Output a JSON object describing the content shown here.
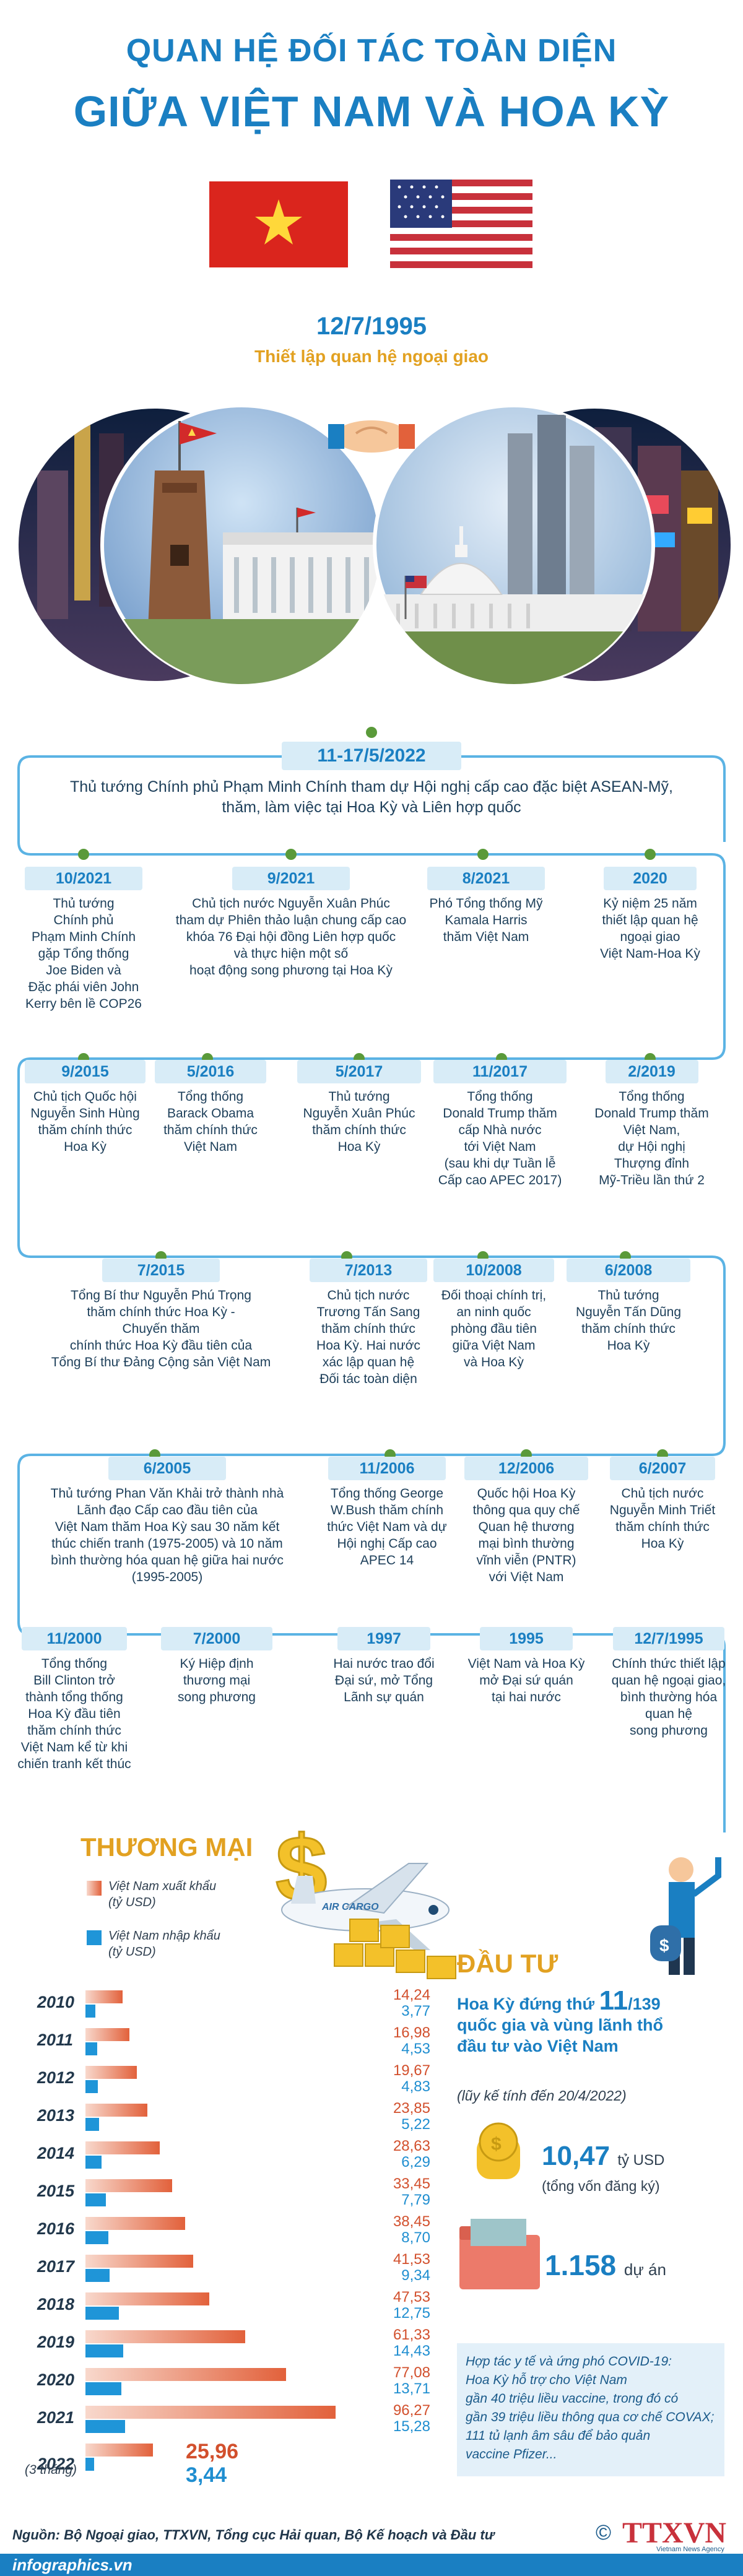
{
  "title": {
    "line1": "QUAN HỆ ĐỐI TÁC TOÀN DIỆN",
    "line2": "GIỮA VIỆT NAM VÀ HOA KỲ"
  },
  "establish": {
    "date": "12/7/1995",
    "label": "Thiết lập quan hệ ngoại giao"
  },
  "colors": {
    "accent": "#1a7fc2",
    "band": "#d8ecf7",
    "export": "#e2613b",
    "import": "#1f95d8",
    "line": "#5bb3e4"
  },
  "top_event": {
    "date": "11-17/5/2022",
    "text": "Thủ tướng Chính phủ Phạm Minh Chính tham dự Hội nghị cấp cao đặc biệt ASEAN-Mỹ,\nthăm, làm việc tại Hoa Kỳ và Liên hợp quốc"
  },
  "rows": [
    [
      {
        "date": "10/2021",
        "text": "Thủ tướng\nChính phủ\nPhạm Minh Chính\ngặp Tổng thống\nJoe Biden và\nĐặc phái viên John\nKerry bên lề COP26"
      },
      {
        "date": "9/2021",
        "text": "Chủ tịch nước Nguyễn Xuân Phúc\ntham dự Phiên thảo luận chung cấp cao\nkhóa 76 Đại hội đồng Liên hợp quốc\nvà thực hiện một số\nhoạt động song phương tại Hoa Kỳ"
      },
      {
        "date": "8/2021",
        "text": "Phó Tổng thống Mỹ\nKamala Harris\nthăm Việt Nam"
      },
      {
        "date": "2020",
        "text": "Kỷ niệm 25 năm\nthiết lập quan hệ\nngoại giao\nViệt Nam-Hoa Kỳ"
      }
    ],
    [
      {
        "date": "9/2015",
        "text": "Chủ tịch Quốc hội\nNguyễn Sinh Hùng\nthăm chính thức\nHoa Kỳ"
      },
      {
        "date": "5/2016",
        "text": "Tổng thống\nBarack Obama\nthăm chính thức\nViệt Nam"
      },
      {
        "date": "5/2017",
        "text": "Thủ tướng\nNguyễn Xuân Phúc\nthăm chính thức\nHoa Kỳ"
      },
      {
        "date": "11/2017",
        "text": "Tổng thống\nDonald Trump thăm\ncấp Nhà nước\ntới Việt Nam\n(sau khi dự Tuần lễ\nCấp cao APEC 2017)"
      },
      {
        "date": "2/2019",
        "text": "Tổng thống\nDonald Trump thăm\nViệt Nam,\ndự Hội nghị\nThượng đỉnh\nMỹ-Triều lần thứ 2"
      }
    ],
    [
      {
        "date": "7/2015",
        "text": "Tổng Bí thư Nguyễn Phú Trọng\nthăm chính thức Hoa Kỳ -\nChuyến thăm\nchính thức Hoa Kỳ đầu tiên của\nTổng Bí thư Đảng Cộng sản Việt Nam"
      },
      {
        "date": "7/2013",
        "text": "Chủ tịch nước\nTrương Tấn Sang\nthăm chính thức\nHoa Kỳ. Hai nước\nxác lập quan hệ\nĐối tác toàn diện"
      },
      {
        "date": "10/2008",
        "text": "Đối thoại chính trị,\nan ninh quốc\nphòng đầu tiên\ngiữa Việt Nam\nvà Hoa Kỳ"
      },
      {
        "date": "6/2008",
        "text": "Thủ tướng\nNguyễn Tấn Dũng\nthăm chính thức\nHoa Kỳ"
      }
    ],
    [
      {
        "date": "6/2005",
        "text": "Thủ tướng Phan Văn Khải trở thành nhà\nLãnh đạo Cấp cao đầu tiên của\nViệt Nam thăm Hoa Kỳ sau 30 năm kết\nthúc chiến tranh (1975-2005) và 10 năm\nbình thường hóa quan hệ giữa hai nước\n(1995-2005)"
      },
      {
        "date": "11/2006",
        "text": "Tổng thống George\nW.Bush thăm chính\nthức Việt Nam và dự\nHội nghị Cấp cao\nAPEC 14"
      },
      {
        "date": "12/2006",
        "text": "Quốc hội Hoa Kỳ\nthông qua quy chế\nQuan hệ thương\nmại bình thường\nvĩnh viễn (PNTR)\nvới Việt Nam"
      },
      {
        "date": "6/2007",
        "text": "Chủ tịch nước\nNguyễn Minh Triết\nthăm chính thức\nHoa Kỳ"
      }
    ],
    [
      {
        "date": "11/2000",
        "text": "Tổng thống\nBill Clinton trở\nthành tổng thống\nHoa Kỳ đầu tiên\nthăm chính thức\nViệt Nam kể từ khi\nchiến tranh kết thúc"
      },
      {
        "date": "7/2000",
        "text": "Ký Hiệp định\nthương mại\nsong phương"
      },
      {
        "date": "1997",
        "text": "Hai nước trao đổi\nĐại sứ, mở Tổng\nLãnh sự quán"
      },
      {
        "date": "1995",
        "text": "Việt Nam và Hoa Kỳ\nmở Đại sứ quán\ntại hai nước"
      },
      {
        "date": "12/7/1995",
        "text": "Chính thức thiết lập\nquan hệ ngoại giao,\nbình thường hóa\nquan hệ\nsong phương"
      }
    ]
  ],
  "trade": {
    "heading": "THƯƠNG MẠI",
    "legend_export": "Việt Nam xuất khẩu\n(tỷ USD)",
    "legend_import": "Việt Nam nhập khẩu\n(tỷ USD)",
    "plane_label": "AIR CARGO",
    "years": [
      "2010",
      "2011",
      "2012",
      "2013",
      "2014",
      "2015",
      "2016",
      "2017",
      "2018",
      "2019",
      "2020",
      "2021",
      "2022"
    ],
    "export_labels": [
      "14,24",
      "16,98",
      "19,67",
      "23,85",
      "28,63",
      "33,45",
      "38,45",
      "41,53",
      "47,53",
      "61,33",
      "77,08",
      "96,27",
      "25,96"
    ],
    "import_labels": [
      "3,77",
      "4,53",
      "4,83",
      "5,22",
      "6,29",
      "7,79",
      "8,70",
      "9,34",
      "12,75",
      "14,43",
      "13,71",
      "15,28",
      "3,44"
    ],
    "export_values": [
      14.24,
      16.98,
      19.67,
      23.85,
      28.63,
      33.45,
      38.45,
      41.53,
      47.53,
      61.33,
      77.08,
      96.27,
      25.96
    ],
    "import_values": [
      3.77,
      4.53,
      4.83,
      5.22,
      6.29,
      7.79,
      8.7,
      9.34,
      12.75,
      14.43,
      13.71,
      15.28,
      3.44
    ],
    "note_2022": "(3 tháng)"
  },
  "invest": {
    "heading": "ĐẦU TƯ",
    "rank_pre": "Hoa Kỳ đứng thứ ",
    "rank_num": "11",
    "rank_post": "/139",
    "rank_line2": "quốc gia và vùng lãnh thổ",
    "rank_line3": "đầu tư vào Việt Nam",
    "asof": "(lũy kế tính đến 20/4/2022)",
    "capital_value": "10,47",
    "capital_unit": "tỷ USD",
    "capital_note": "(tổng vốn đăng ký)",
    "projects_value": "1.158",
    "projects_unit": "dự án",
    "covid_text": "Hợp tác y tế và ứng phó COVID-19:\nHoa Kỳ hỗ trợ cho Việt Nam\ngần 40 triệu liều vaccine, trong đó có\ngần 39 triệu liều thông qua cơ chế COVAX;\n111 tủ lạnh âm sâu để bảo quản\nvaccine Pfizer..."
  },
  "footer": {
    "source": "Nguồn: Bộ Ngoại giao, TTXVN, Tổng cục Hải quan, Bộ Kế hoạch và Đầu tư",
    "site": "infographics.vn",
    "copyright": "©",
    "logo": "TTXVN",
    "logo_sub": "Vietnam News Agency"
  }
}
